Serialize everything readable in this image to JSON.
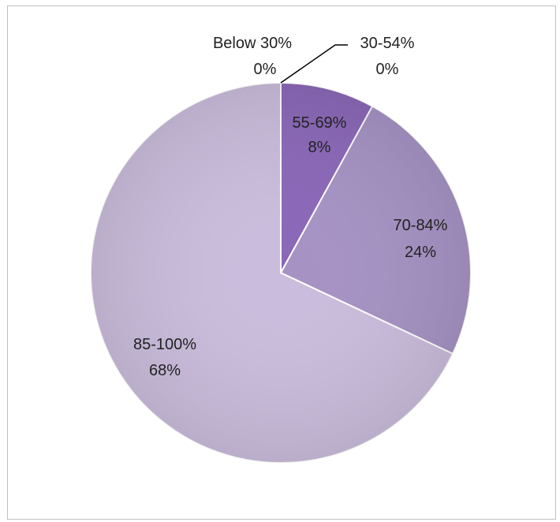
{
  "chart_data": {
    "type": "pie",
    "title": "",
    "categories": [
      "Below 30%",
      "30-54%",
      "55-69%",
      "70-84%",
      "85-100%"
    ],
    "values": [
      0,
      0,
      8,
      24,
      68
    ],
    "value_labels": [
      "0%",
      "0%",
      "8%",
      "24%",
      "68%"
    ],
    "colors": [
      "#3f2766",
      "#5a3a8a",
      "#8a66b8",
      "#a592c4",
      "#cabcdc"
    ],
    "start_angle_deg": 0,
    "direction": "clockwise",
    "legend": "none",
    "data_labels": "category-and-percent"
  }
}
